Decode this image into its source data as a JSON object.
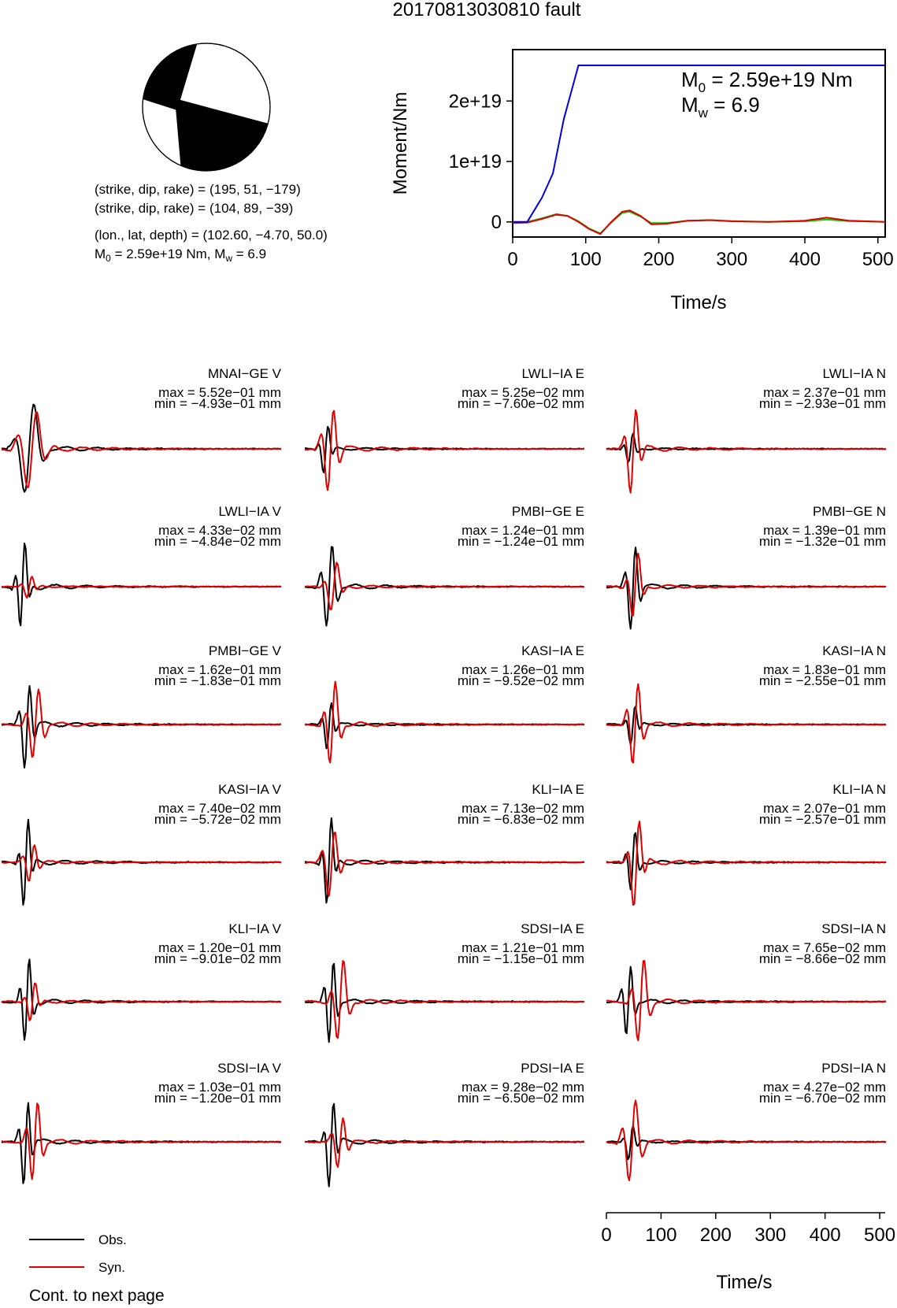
{
  "title": "20170813030810 fault",
  "info": {
    "line1": "(strike, dip, rake) = (195, 51, −179)",
    "line2": "(strike, dip, rake) = (104, 89, −39)",
    "line3": "(lon., lat, depth) = (102.60, −4.70, 50.0)",
    "line4_m0": "M",
    "line4_m0_sub": "0",
    "line4_mid": " = 2.59e+19 Nm, M",
    "line4_mw_sub": "w",
    "line4_end": " = 6.9"
  },
  "moment_annot": {
    "m0_label": "M",
    "m0_sub": "0",
    "m0_value": " = 2.59e+19 Nm",
    "mw_label": "M",
    "mw_sub": "w",
    "mw_value": " = 6.9"
  },
  "legend": {
    "obs": "Obs.",
    "syn": "Syn."
  },
  "footer": "Cont. to next page",
  "colors": {
    "obs": "#000000",
    "syn": "#e00000",
    "moment": "#0000e0",
    "green": "#00cc00"
  },
  "chart_data": [
    {
      "type": "line",
      "name": "moment-rate",
      "xlabel": "Time/s",
      "ylabel": "Moment/Nm",
      "xlim": [
        0,
        510
      ],
      "ylim": [
        -2.5e+18,
        2.85e+19
      ],
      "xticks": [
        "0",
        "100",
        "200",
        "300",
        "400",
        "500"
      ],
      "xtick_values": [
        0,
        100,
        200,
        300,
        400,
        500
      ],
      "yticks": [
        "0",
        "1e+19",
        "2e+19"
      ],
      "ytick_values": [
        0,
        1e+19,
        2e+19
      ],
      "series": [
        {
          "color": "blue",
          "x": [
            0,
            20,
            40,
            55,
            70,
            90,
            510
          ],
          "y": [
            0,
            0,
            4e+18,
            8e+18,
            1.7e+19,
            2.59e+19,
            2.59e+19
          ]
        },
        {
          "color": "red",
          "x": [
            0,
            20,
            40,
            60,
            75,
            90,
            105,
            120,
            135,
            150,
            160,
            175,
            190,
            210,
            240,
            270,
            300,
            350,
            400,
            430,
            460,
            510
          ],
          "y": [
            -2e+17,
            -1e+17,
            5e+17,
            1.2e+18,
            1e+18,
            0,
            -1.2e+18,
            -2e+18,
            0,
            1.7e+18,
            1.9e+18,
            1e+18,
            -4e+17,
            -3e+17,
            2e+17,
            3e+17,
            1e+17,
            0,
            2e+17,
            7e+17,
            2e+17,
            0
          ]
        },
        {
          "color": "green",
          "x": [
            0,
            20,
            40,
            60,
            75,
            90,
            105,
            120,
            135,
            150,
            160,
            175,
            190,
            210,
            240,
            270,
            300,
            350,
            400,
            430,
            460,
            510
          ],
          "y": [
            -1e+17,
            0,
            6e+17,
            1.3e+18,
            1e+18,
            1e+17,
            -1.1e+18,
            -1.9e+18,
            -1e+17,
            1.5e+18,
            1.7e+18,
            9e+17,
            -2e+17,
            -2e+17,
            2e+17,
            3e+17,
            1.5e+17,
            0,
            1e+17,
            4e+17,
            1.5e+17,
            0
          ]
        }
      ]
    },
    {
      "type": "line",
      "name": "waveforms",
      "xlabel": "Time/s",
      "xlim": [
        0,
        510
      ],
      "xticks": [
        "0",
        "100",
        "200",
        "300",
        "400",
        "500"
      ],
      "xtick_values": [
        0,
        100,
        200,
        300,
        400,
        500
      ],
      "stations": [
        {
          "label": "MNAI−GE V",
          "max": "max = 5.52e−01 mm",
          "min": "min = −4.93e−01 mm",
          "obs": {
            "t0": 10,
            "pre": [
              [
                0,
                -0.2
              ],
              [
                5,
                0.1
              ],
              [
                8,
                0.15
              ]
            ],
            "amp": 1.0,
            "dur": 90,
            "post": [
              [
                0.6,
                -0.02
              ],
              [
                0.35,
                0.02
              ]
            ]
          },
          "syn": {
            "t0": 15,
            "pre": [
              [
                0,
                -0.18
              ],
              [
                5,
                0.12
              ]
            ],
            "amp": 0.95,
            "dur": 90,
            "post": [
              [
                0.5,
                -0.05
              ],
              [
                0.4,
                0.05
              ]
            ]
          }
        },
        {
          "label": "LWLI−IA E",
          "max": "max = 5.25e−02 mm",
          "min": "min = −7.60e−02 mm",
          "obs": {
            "t0": 18,
            "amp": 0.55,
            "dur": 45
          },
          "syn": {
            "t0": 20,
            "amp": 1.0,
            "dur": 60
          }
        },
        {
          "label": "LWLI−IA N",
          "max": "max = 2.37e−01 mm",
          "min": "min = −2.93e−01 mm",
          "obs": {
            "t0": 24,
            "amp": 0.35,
            "dur": 45
          },
          "syn": {
            "t0": 24,
            "amp": 1.0,
            "dur": 55
          }
        },
        {
          "label": "LWLI−IA V",
          "max": "max = 4.33e−02 mm",
          "min": "min = −4.84e−02 mm",
          "obs": {
            "t0": 18,
            "amp": 1.0,
            "dur": 45
          },
          "syn": {
            "t0": 28,
            "amp": 0.25,
            "dur": 50
          }
        },
        {
          "label": "PMBI−GE E",
          "max": "max = 1.24e−01 mm",
          "min": "min = −1.24e−01 mm",
          "obs": {
            "t0": 20,
            "amp": 1.0,
            "dur": 55
          },
          "syn": {
            "t0": 26,
            "amp": 0.55,
            "dur": 60
          }
        },
        {
          "label": "PMBI−GE N",
          "max": "max = 1.39e−01 mm",
          "min": "min = −1.32e−01 mm",
          "obs": {
            "t0": 26,
            "amp": 1.0,
            "dur": 50
          },
          "syn": {
            "t0": 28,
            "amp": 0.75,
            "dur": 55
          }
        },
        {
          "label": "PMBI−GE V",
          "max": "max = 1.62e−01 mm",
          "min": "min = −1.83e−01 mm",
          "obs": {
            "t0": 24,
            "amp": 1.0,
            "dur": 50
          },
          "syn": {
            "t0": 35,
            "amp": 0.85,
            "dur": 60
          }
        },
        {
          "label": "KASI−IA E",
          "max": "max = 1.26e−01 mm",
          "min": "min = −9.52e−02 mm",
          "obs": {
            "t0": 24,
            "amp": 0.55,
            "dur": 45
          },
          "syn": {
            "t0": 26,
            "amp": 1.0,
            "dur": 55
          }
        },
        {
          "label": "KASI−IA N",
          "max": "max = 1.83e−01 mm",
          "min": "min = −2.55e−01 mm",
          "obs": {
            "t0": 28,
            "amp": 0.45,
            "dur": 45
          },
          "syn": {
            "t0": 28,
            "amp": 1.0,
            "dur": 55
          }
        },
        {
          "label": "KASI−IA V",
          "max": "max = 7.40e−02 mm",
          "min": "min = −5.72e−02 mm",
          "obs": {
            "t0": 24,
            "amp": 1.0,
            "dur": 45
          },
          "syn": {
            "t0": 30,
            "amp": 0.45,
            "dur": 55
          }
        },
        {
          "label": "KLI−IA E",
          "max": "max = 7.13e−02 mm",
          "min": "min = −6.83e−02 mm",
          "obs": {
            "t0": 24,
            "amp": 1.0,
            "dur": 45
          },
          "syn": {
            "t0": 22,
            "amp": 0.8,
            "dur": 60
          }
        },
        {
          "label": "KLI−IA N",
          "max": "max = 2.07e−01 mm",
          "min": "min = −2.57e−01 mm",
          "obs": {
            "t0": 28,
            "amp": 0.7,
            "dur": 45
          },
          "syn": {
            "t0": 30,
            "amp": 1.0,
            "dur": 55
          }
        },
        {
          "label": "KLI−IA V",
          "max": "max = 1.20e−01 mm",
          "min": "min = −9.01e−02 mm",
          "obs": {
            "t0": 26,
            "amp": 1.0,
            "dur": 45
          },
          "syn": {
            "t0": 34,
            "amp": 0.45,
            "dur": 50
          }
        },
        {
          "label": "SDSI−IA E",
          "max": "max = 1.21e−01 mm",
          "min": "min = −1.15e−01 mm",
          "obs": {
            "t0": 28,
            "amp": 1.0,
            "dur": 45
          },
          "syn": {
            "t0": 38,
            "amp": 0.95,
            "dur": 60
          }
        },
        {
          "label": "SDSI−IA N",
          "max": "max = 7.65e−02 mm",
          "min": "min = −8.66e−02 mm",
          "obs": {
            "t0": 20,
            "amp": 0.85,
            "dur": 45
          },
          "syn": {
            "t0": 36,
            "amp": 1.0,
            "dur": 60
          }
        },
        {
          "label": "SDSI−IA V",
          "max": "max = 1.03e−01 mm",
          "min": "min = −1.20e−01 mm",
          "obs": {
            "t0": 24,
            "amp": 1.0,
            "dur": 45
          },
          "syn": {
            "t0": 36,
            "amp": 0.95,
            "dur": 55
          }
        },
        {
          "label": "PDSI−IA E",
          "max": "max = 9.28e−02 mm",
          "min": "min = −6.50e−02 mm",
          "obs": {
            "t0": 28,
            "amp": 1.0,
            "dur": 45
          },
          "syn": {
            "t0": 40,
            "amp": 0.6,
            "dur": 55
          }
        },
        {
          "label": "PDSI−IA N",
          "max": "max = 4.27e−02 mm",
          "min": "min = −6.70e−02 mm",
          "obs": {
            "t0": 24,
            "amp": 0.4,
            "dur": 45
          },
          "syn": {
            "t0": 18,
            "amp": 1.0,
            "dur": 65
          }
        }
      ]
    }
  ]
}
